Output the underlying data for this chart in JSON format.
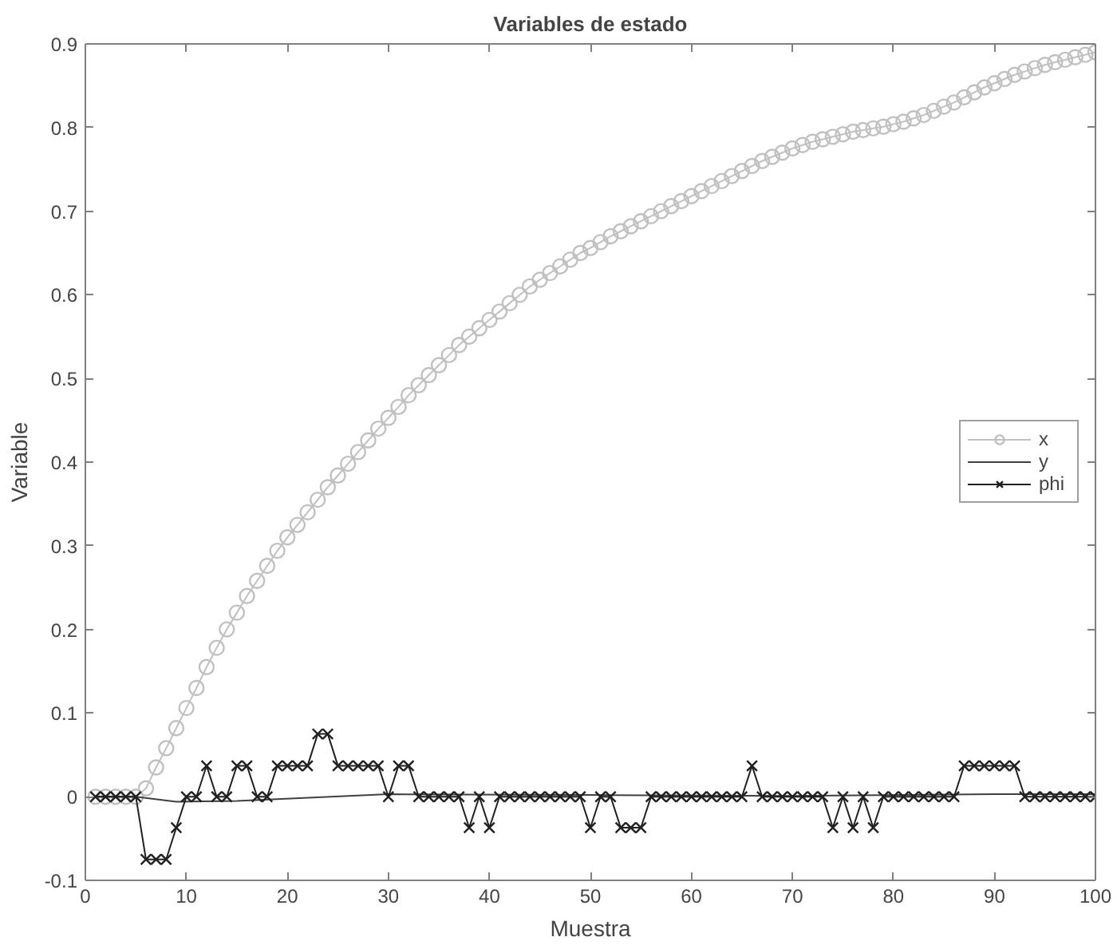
{
  "chart_data": {
    "type": "line",
    "title": "Variables de estado",
    "xlabel": "Muestra",
    "ylabel": "Variable",
    "xlim": [
      0,
      100
    ],
    "xticks": [
      0,
      10,
      20,
      30,
      40,
      50,
      60,
      70,
      80,
      90,
      100
    ],
    "ylim": [
      -0.1,
      0.9
    ],
    "yticks": [
      -0.1,
      0,
      0.1,
      0.2,
      0.3,
      0.4,
      0.5,
      0.6,
      0.7,
      0.8,
      0.9
    ],
    "grid": false,
    "legend": "right",
    "x": [
      1,
      2,
      3,
      4,
      5,
      6,
      7,
      8,
      9,
      10,
      11,
      12,
      13,
      14,
      15,
      16,
      17,
      18,
      19,
      20,
      21,
      22,
      23,
      24,
      25,
      26,
      27,
      28,
      29,
      30,
      31,
      32,
      33,
      34,
      35,
      36,
      37,
      38,
      39,
      40,
      41,
      42,
      43,
      44,
      45,
      46,
      47,
      48,
      49,
      50,
      51,
      52,
      53,
      54,
      55,
      56,
      57,
      58,
      59,
      60,
      61,
      62,
      63,
      64,
      65,
      66,
      67,
      68,
      69,
      70,
      71,
      72,
      73,
      74,
      75,
      76,
      77,
      78,
      79,
      80,
      81,
      82,
      83,
      84,
      85,
      86,
      87,
      88,
      89,
      90,
      91,
      92,
      93,
      94,
      95,
      96,
      97,
      98,
      99,
      100
    ],
    "series": [
      {
        "name": "x",
        "color": "#c0c0c0",
        "marker": "circle",
        "values": [
          0,
          0,
          0,
          0,
          0,
          0.01,
          0.035,
          0.058,
          0.082,
          0.106,
          0.13,
          0.155,
          0.178,
          0.2,
          0.22,
          0.24,
          0.258,
          0.276,
          0.294,
          0.31,
          0.325,
          0.34,
          0.355,
          0.37,
          0.384,
          0.398,
          0.412,
          0.426,
          0.44,
          0.453,
          0.466,
          0.48,
          0.492,
          0.504,
          0.516,
          0.528,
          0.54,
          0.55,
          0.56,
          0.57,
          0.58,
          0.59,
          0.6,
          0.61,
          0.618,
          0.626,
          0.634,
          0.642,
          0.65,
          0.656,
          0.663,
          0.67,
          0.676,
          0.682,
          0.688,
          0.694,
          0.7,
          0.706,
          0.712,
          0.718,
          0.724,
          0.73,
          0.736,
          0.742,
          0.748,
          0.754,
          0.76,
          0.765,
          0.77,
          0.775,
          0.779,
          0.783,
          0.786,
          0.789,
          0.792,
          0.795,
          0.797,
          0.799,
          0.801,
          0.804,
          0.807,
          0.811,
          0.815,
          0.82,
          0.825,
          0.83,
          0.836,
          0.842,
          0.848,
          0.853,
          0.858,
          0.863,
          0.867,
          0.871,
          0.875,
          0.878,
          0.881,
          0.884,
          0.887,
          0.89
        ]
      },
      {
        "name": "y",
        "color": "#404040",
        "marker": "none",
        "x": [
          1,
          5,
          9,
          15,
          30,
          50,
          70,
          90,
          100
        ],
        "values": [
          0,
          0,
          -0.006,
          -0.005,
          0.003,
          0.002,
          0.001,
          0.003,
          0.003
        ]
      },
      {
        "name": "phi",
        "color": "#202020",
        "marker": "cross",
        "values": [
          0,
          0,
          0,
          0,
          0,
          -0.075,
          -0.075,
          -0.075,
          -0.037,
          0,
          0,
          0.037,
          0,
          0,
          0.037,
          0.037,
          0,
          0,
          0.037,
          0.037,
          0.037,
          0.037,
          0.075,
          0.075,
          0.037,
          0.037,
          0.037,
          0.037,
          0.037,
          0,
          0.037,
          0.037,
          0,
          0,
          0,
          0,
          0,
          -0.037,
          0,
          -0.037,
          0,
          0,
          0,
          0,
          0,
          0,
          0,
          0,
          0,
          -0.037,
          0,
          0,
          -0.037,
          -0.037,
          -0.037,
          0,
          0,
          0,
          0,
          0,
          0,
          0,
          0,
          0,
          0,
          0.037,
          0,
          0,
          0,
          0,
          0,
          0,
          0,
          -0.037,
          0,
          -0.037,
          0,
          -0.037,
          0,
          0,
          0,
          0,
          0,
          0,
          0,
          0,
          0.037,
          0.037,
          0.037,
          0.037,
          0.037,
          0.037,
          0,
          0,
          0,
          0,
          0,
          0,
          0,
          0
        ]
      }
    ]
  }
}
